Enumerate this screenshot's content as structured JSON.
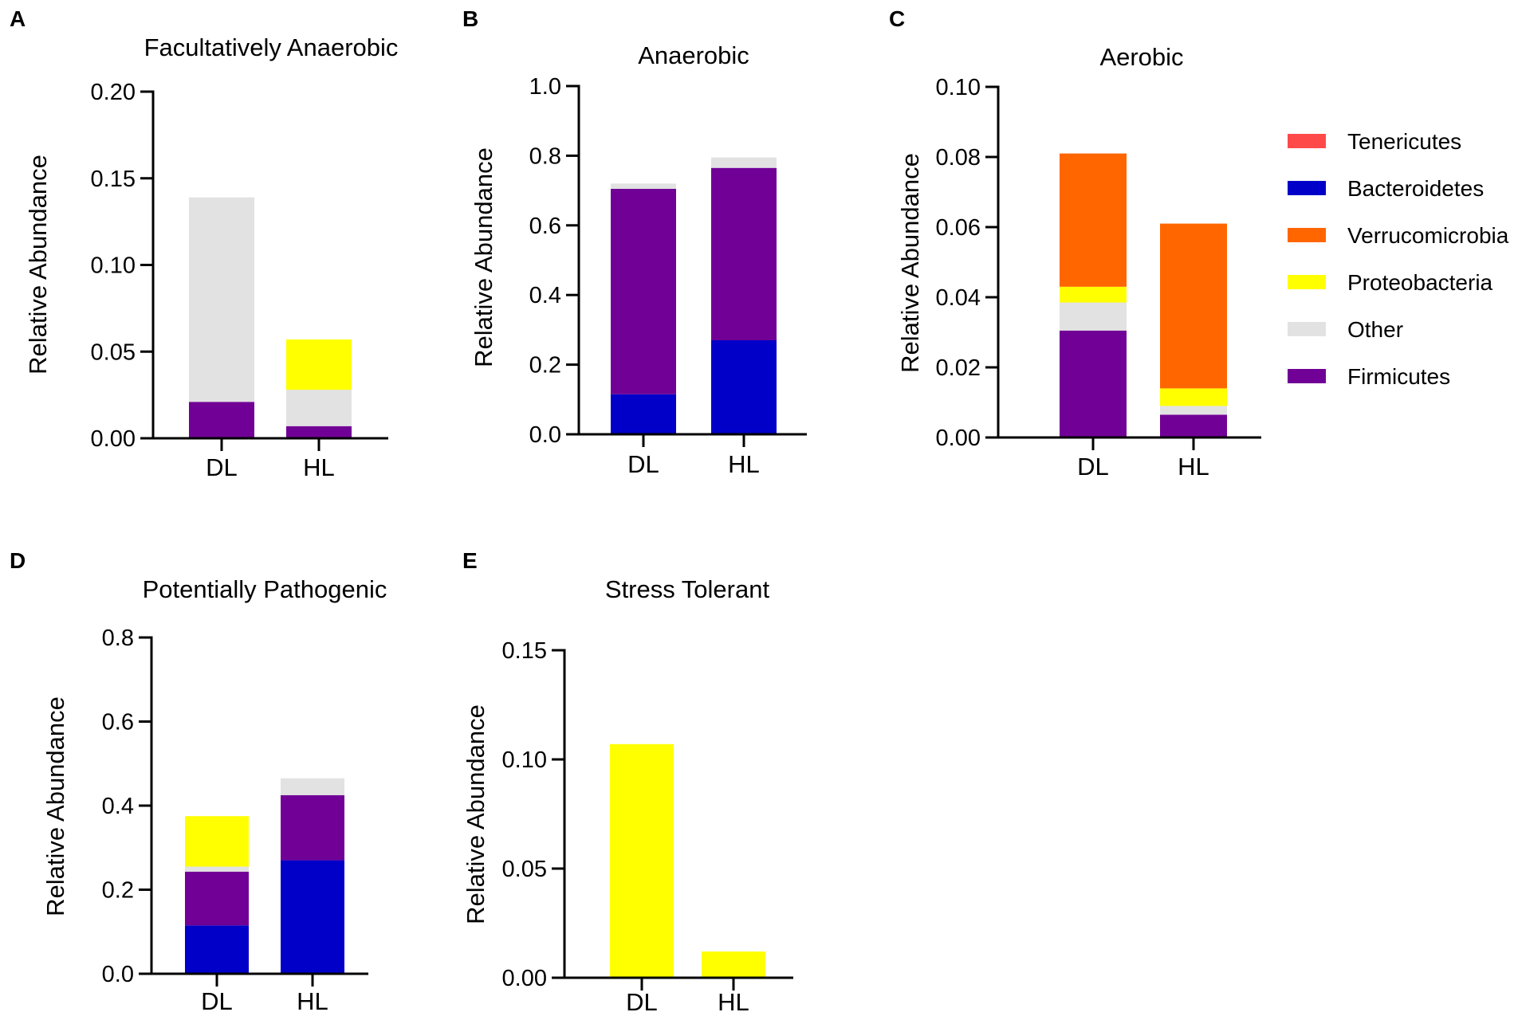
{
  "colors": {
    "Tenericutes": "#ff4a4a",
    "Bacteroidetes": "#0000c8",
    "Verrucomicrobia": "#ff6600",
    "Proteobacteria": "#ffff00",
    "Other": "#e2e2e2",
    "Firmicutes": "#710096"
  },
  "legend": {
    "entries": [
      "Tenericutes",
      "Bacteroidetes",
      "Verrucomicrobia",
      "Proteobacteria",
      "Other",
      "Firmicutes"
    ]
  },
  "chart_data": [
    {
      "panel": "A",
      "type": "bar",
      "stacked": true,
      "title": "Facultatively Anaerobic",
      "xlabel": "",
      "ylabel": "Relative Abundance",
      "categories": [
        "DL",
        "HL"
      ],
      "ylim": [
        0,
        0.2
      ],
      "ticks": [
        "0.00",
        "0.05",
        "0.10",
        "0.15",
        "0.20"
      ],
      "series": [
        {
          "name": "Firmicutes",
          "values": [
            0.021,
            0.007
          ]
        },
        {
          "name": "Other",
          "values": [
            0.118,
            0.021
          ]
        },
        {
          "name": "Proteobacteria",
          "values": [
            0,
            0.029
          ]
        }
      ]
    },
    {
      "panel": "B",
      "type": "bar",
      "stacked": true,
      "title": "Anaerobic",
      "xlabel": "",
      "ylabel": "Relative Abundance",
      "categories": [
        "DL",
        "HL"
      ],
      "ylim": [
        0,
        1.0
      ],
      "ticks": [
        "0.0",
        "0.2",
        "0.4",
        "0.6",
        "0.8",
        "1.0"
      ],
      "series": [
        {
          "name": "Bacteroidetes",
          "values": [
            0.115,
            0.27
          ]
        },
        {
          "name": "Firmicutes",
          "values": [
            0.59,
            0.495
          ]
        },
        {
          "name": "Other",
          "values": [
            0.015,
            0.03
          ]
        }
      ]
    },
    {
      "panel": "C",
      "type": "bar",
      "stacked": true,
      "title": "Aerobic",
      "xlabel": "",
      "ylabel": "Relative Abundance",
      "categories": [
        "DL",
        "HL"
      ],
      "ylim": [
        0,
        0.1
      ],
      "ticks": [
        "0.00",
        "0.02",
        "0.04",
        "0.06",
        "0.08",
        "0.10"
      ],
      "series": [
        {
          "name": "Firmicutes",
          "values": [
            0.0305,
            0.0065
          ]
        },
        {
          "name": "Other",
          "values": [
            0.008,
            0.0025
          ]
        },
        {
          "name": "Proteobacteria",
          "values": [
            0.0045,
            0.005
          ]
        },
        {
          "name": "Verrucomicrobia",
          "values": [
            0.038,
            0.047
          ]
        }
      ]
    },
    {
      "panel": "D",
      "type": "bar",
      "stacked": true,
      "title": "Potentially Pathogenic",
      "xlabel": "",
      "ylabel": "Relative Abundance",
      "categories": [
        "DL",
        "HL"
      ],
      "ylim": [
        0,
        0.8
      ],
      "ticks": [
        "0.0",
        "0.2",
        "0.4",
        "0.6",
        "0.8"
      ],
      "series": [
        {
          "name": "Bacteroidetes",
          "values": [
            0.115,
            0.27
          ]
        },
        {
          "name": "Firmicutes",
          "values": [
            0.128,
            0.155
          ]
        },
        {
          "name": "Other",
          "values": [
            0.012,
            0.04
          ]
        },
        {
          "name": "Proteobacteria",
          "values": [
            0.12,
            0
          ]
        }
      ]
    },
    {
      "panel": "E",
      "type": "bar",
      "stacked": true,
      "title": "Stress Tolerant",
      "xlabel": "",
      "ylabel": "Relative Abundance",
      "categories": [
        "DL",
        "HL"
      ],
      "ylim": [
        0,
        0.15
      ],
      "ticks": [
        "0.00",
        "0.05",
        "0.10",
        "0.15"
      ],
      "series": [
        {
          "name": "Proteobacteria",
          "values": [
            0.107,
            0.012
          ]
        }
      ]
    }
  ]
}
